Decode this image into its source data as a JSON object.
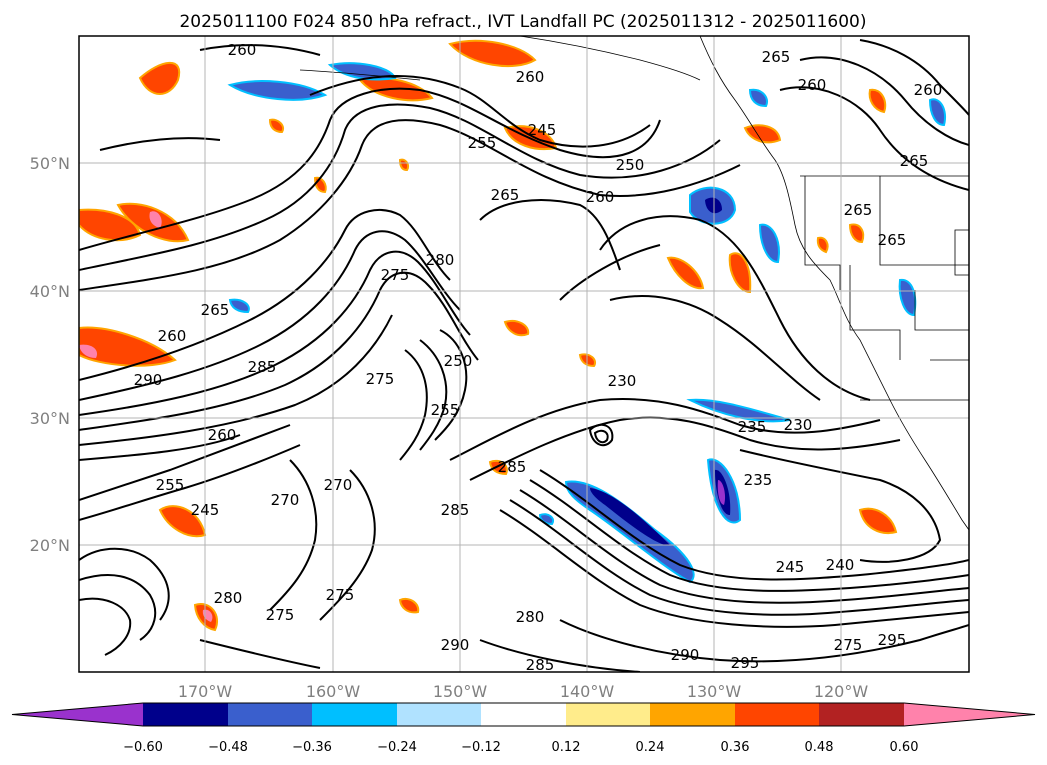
{
  "title": "2025011100 F024 850 hPa refract., IVT Landfall PC (2025011312 - 2025011600)",
  "lat_labels": [
    "50°N",
    "40°N",
    "30°N",
    "20°N"
  ],
  "lon_labels": [
    "170°W",
    "160°W",
    "150°W",
    "140°W",
    "130°W",
    "120°W"
  ],
  "colorbar": {
    "ticks": [
      "−0.60",
      "−0.48",
      "−0.36",
      "−0.24",
      "−0.12",
      "0.12",
      "0.24",
      "0.36",
      "0.48",
      "0.60"
    ],
    "colors": [
      "#9a32cd",
      "#00008b",
      "#3a5fcd",
      "#00bfff",
      "#b0e2ff",
      "#ffffff",
      "#ffec8b",
      "#ffa500",
      "#ff4500",
      "#b22222",
      "#ff82ab"
    ]
  },
  "contour_labels": [
    "260",
    "260",
    "245",
    "255",
    "250",
    "260",
    "265",
    "265",
    "260",
    "265",
    "260",
    "280",
    "275",
    "265",
    "260",
    "290",
    "285",
    "275",
    "250",
    "255",
    "230",
    "235",
    "230",
    "235",
    "285",
    "285",
    "270",
    "270",
    "260",
    "245",
    "255",
    "275",
    "280",
    "275",
    "290",
    "280",
    "285",
    "290",
    "295",
    "275",
    "295",
    "245",
    "240",
    "265",
    "265"
  ]
}
